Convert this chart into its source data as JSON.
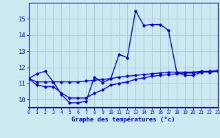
{
  "xlabel": "Graphe des températures (°c)",
  "x_ticks": [
    0,
    1,
    2,
    3,
    4,
    5,
    6,
    7,
    8,
    9,
    10,
    11,
    12,
    13,
    14,
    15,
    16,
    17,
    18,
    19,
    20,
    21,
    22,
    23
  ],
  "ylim": [
    9.5,
    16.0
  ],
  "xlim": [
    0,
    23
  ],
  "yticks": [
    10,
    11,
    12,
    13,
    14,
    15
  ],
  "background_color": "#cce8f0",
  "grid_color": "#a8cdd8",
  "line_color": "#0000cc",
  "series1": [
    11.3,
    11.6,
    11.75,
    11.1,
    10.3,
    9.8,
    9.8,
    9.9,
    11.4,
    11.05,
    11.3,
    12.8,
    12.6,
    15.5,
    14.6,
    14.65,
    14.65,
    14.3,
    11.7,
    11.5,
    11.5,
    11.7,
    11.75,
    11.75
  ],
  "series2": [
    11.3,
    11.1,
    11.1,
    11.1,
    11.1,
    11.1,
    11.1,
    11.15,
    11.2,
    11.25,
    11.3,
    11.4,
    11.45,
    11.5,
    11.55,
    11.6,
    11.65,
    11.7,
    11.7,
    11.7,
    11.7,
    11.75,
    11.75,
    11.8
  ],
  "series3": [
    11.3,
    10.9,
    10.8,
    10.8,
    10.4,
    10.1,
    10.1,
    10.1,
    10.4,
    10.6,
    10.9,
    11.0,
    11.1,
    11.25,
    11.35,
    11.45,
    11.5,
    11.55,
    11.6,
    11.65,
    11.65,
    11.7,
    11.7,
    11.75
  ]
}
